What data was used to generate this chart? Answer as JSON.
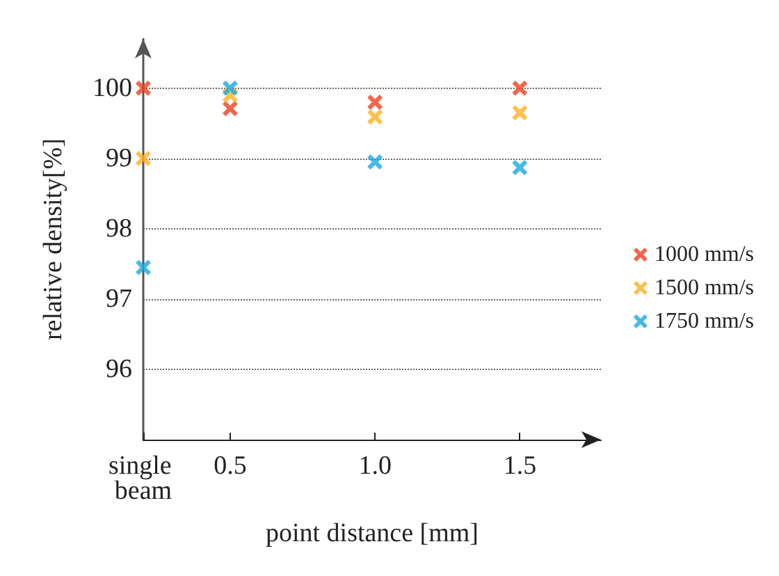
{
  "chart_data": {
    "type": "scatter",
    "xlabel": "point distance [mm]",
    "ylabel": "relative density[%]",
    "x": [
      0.2,
      0.5,
      1.0,
      1.5
    ],
    "series": [
      {
        "name": "1000 mm/s",
        "color": "#f0401e",
        "values": [
          100.0,
          99.71,
          99.8,
          100.0
        ]
      },
      {
        "name": "1500 mm/s",
        "color": "#ffb020",
        "values": [
          99.0,
          99.9,
          99.59,
          99.65
        ]
      },
      {
        "name": "1750 mm/s",
        "color": "#18a8e0",
        "values": [
          97.45,
          100.0,
          98.95,
          98.87
        ]
      }
    ],
    "xlim": [
      0.2,
      1.78
    ],
    "xticks": [
      {
        "value": 0.2,
        "label": "single beam"
      },
      0.5,
      {
        "value": 1,
        "label": "1.0"
      },
      1.5
    ],
    "ylim": [
      95,
      100.7
    ],
    "yticks": [
      96,
      97,
      98,
      99,
      100
    ],
    "grid": "y",
    "legend": "right",
    "marker": "cross"
  }
}
